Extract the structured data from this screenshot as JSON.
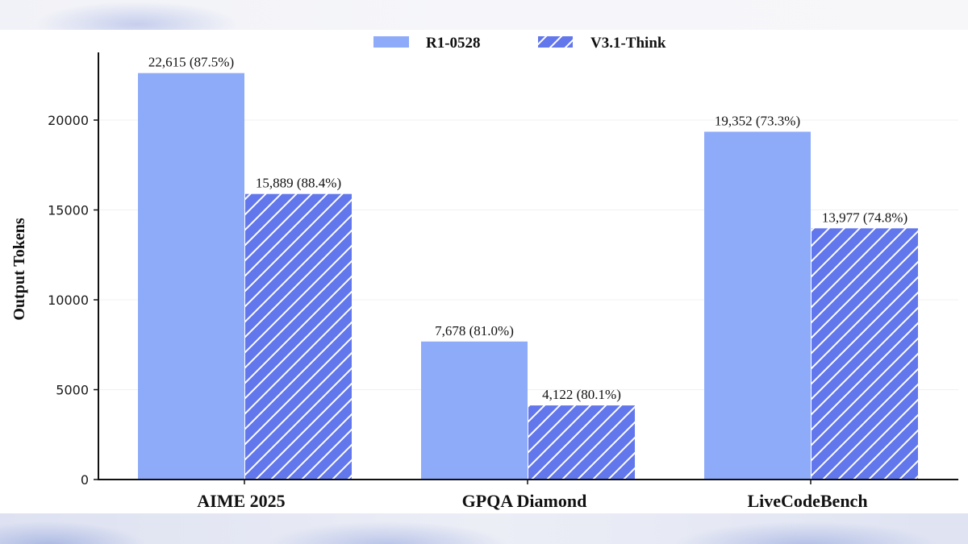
{
  "chart_data": {
    "type": "bar",
    "title": "",
    "xlabel": "",
    "ylabel": "Output Tokens",
    "ylim": [
      0,
      23750
    ],
    "yticks": [
      0,
      5000,
      10000,
      15000,
      20000
    ],
    "ytick_labels": [
      "0",
      "5000",
      "10000",
      "15000",
      "20000"
    ],
    "grid": "horizontal, faint",
    "legend_position": "top-center",
    "categories": [
      "AIME 2025",
      "GPQA Diamond",
      "LiveCodeBench"
    ],
    "series": [
      {
        "name": "R1-0528",
        "style": "solid",
        "color": "#8eabf9",
        "values": [
          22615,
          7678,
          19352
        ],
        "labels": [
          "22,615 (87.5%)",
          "7,678 (81.0%)",
          "19,352 (73.3%)"
        ],
        "accuracy_percent": [
          87.5,
          81.0,
          73.3
        ]
      },
      {
        "name": "V3.1-Think",
        "style": "hatched",
        "color": "#6277ec",
        "hatch_color": "#ffffff",
        "values": [
          15889,
          4122,
          13977
        ],
        "labels": [
          "15,889 (88.4%)",
          "4,122 (80.1%)",
          "13,977 (74.8%)"
        ],
        "accuracy_percent": [
          88.4,
          80.1,
          74.8
        ]
      }
    ]
  }
}
